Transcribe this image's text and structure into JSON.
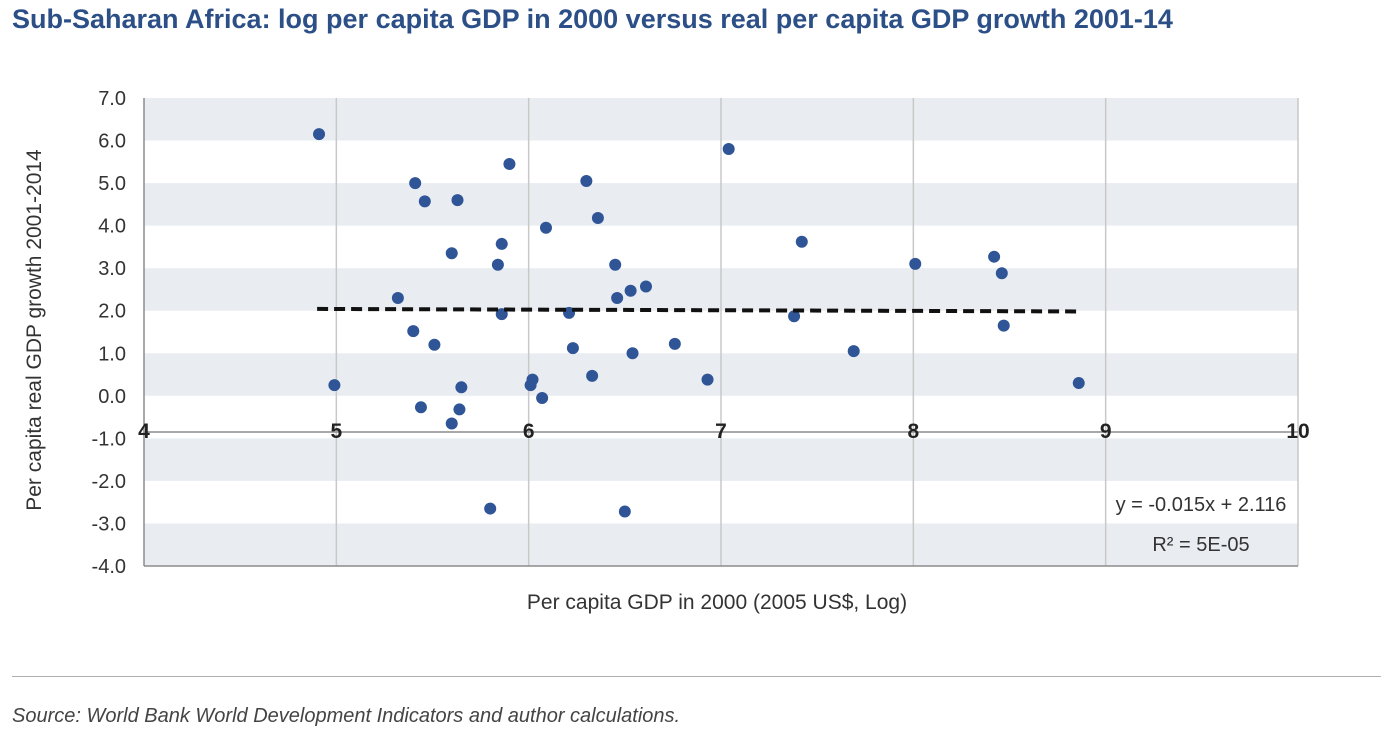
{
  "title": "Sub-Saharan Africa: log per capita GDP in 2000 versus real per capita GDP growth 2001-14",
  "source": "Source: World Bank World Development Indicators and author calculations.",
  "colors": {
    "title": "#2b4f86",
    "marker": "#2f5597",
    "band": "#e9edf1",
    "trendline": "#111111"
  },
  "chart_data": {
    "type": "scatter",
    "title": "Sub-Saharan Africa: log per capita GDP in 2000 versus real per capita GDP growth 2001-14",
    "xlabel": "Per capita GDP in 2000 (2005 US$, Log)",
    "ylabel": "Per capita real GDP growth 2001-2014",
    "xlim": [
      4,
      10
    ],
    "ylim": [
      -4,
      7
    ],
    "xticks": [
      4,
      5,
      6,
      7,
      8,
      9,
      10
    ],
    "xtick_labels": [
      "4",
      "5",
      "6",
      "7",
      "8",
      "9",
      "10"
    ],
    "yticks": [
      7,
      6,
      5,
      4,
      3,
      2,
      1,
      0,
      -1,
      -2,
      -3,
      -4
    ],
    "ytick_labels": [
      "7.0",
      "6.0",
      "5.0",
      "4.0",
      "3.0",
      "2.0",
      "1.0",
      "0.0",
      "-1.0",
      "-2.0",
      "-3.0",
      "-4.0"
    ],
    "grid": "vertical lines and alternating horizontal bands",
    "x_axis_crosses_y_at": -0.85,
    "points": [
      {
        "x": 4.91,
        "y": 6.15
      },
      {
        "x": 4.99,
        "y": 0.25
      },
      {
        "x": 5.32,
        "y": 2.3
      },
      {
        "x": 5.4,
        "y": 1.52
      },
      {
        "x": 5.41,
        "y": 5.0
      },
      {
        "x": 5.44,
        "y": -0.27
      },
      {
        "x": 5.46,
        "y": 4.57
      },
      {
        "x": 5.51,
        "y": 1.2
      },
      {
        "x": 5.6,
        "y": 3.35
      },
      {
        "x": 5.6,
        "y": -0.65
      },
      {
        "x": 5.63,
        "y": 4.6
      },
      {
        "x": 5.64,
        "y": -0.32
      },
      {
        "x": 5.65,
        "y": 0.2
      },
      {
        "x": 5.8,
        "y": -2.65
      },
      {
        "x": 5.84,
        "y": 3.08
      },
      {
        "x": 5.86,
        "y": 3.57
      },
      {
        "x": 5.86,
        "y": 1.92
      },
      {
        "x": 5.9,
        "y": 5.45
      },
      {
        "x": 6.01,
        "y": 0.25
      },
      {
        "x": 6.02,
        "y": 0.38
      },
      {
        "x": 6.07,
        "y": -0.05
      },
      {
        "x": 6.09,
        "y": 3.95
      },
      {
        "x": 6.21,
        "y": 1.95
      },
      {
        "x": 6.23,
        "y": 1.12
      },
      {
        "x": 6.3,
        "y": 5.05
      },
      {
        "x": 6.33,
        "y": 0.47
      },
      {
        "x": 6.36,
        "y": 4.18
      },
      {
        "x": 6.45,
        "y": 3.08
      },
      {
        "x": 6.46,
        "y": 2.3
      },
      {
        "x": 6.5,
        "y": -2.72
      },
      {
        "x": 6.53,
        "y": 2.47
      },
      {
        "x": 6.54,
        "y": 1.0
      },
      {
        "x": 6.61,
        "y": 2.57
      },
      {
        "x": 6.76,
        "y": 1.22
      },
      {
        "x": 6.93,
        "y": 0.38
      },
      {
        "x": 7.04,
        "y": 5.8
      },
      {
        "x": 7.38,
        "y": 1.87
      },
      {
        "x": 7.42,
        "y": 3.62
      },
      {
        "x": 7.69,
        "y": 1.05
      },
      {
        "x": 8.01,
        "y": 3.1
      },
      {
        "x": 8.42,
        "y": 3.27
      },
      {
        "x": 8.46,
        "y": 2.88
      },
      {
        "x": 8.47,
        "y": 1.65
      },
      {
        "x": 8.86,
        "y": 0.3
      }
    ],
    "trendline": {
      "style": "dashed",
      "x_range": [
        4.9,
        8.87
      ],
      "slope": -0.015,
      "intercept": 2.116,
      "equation": "y = -0.015x + 2.116",
      "r_squared": "R² = 5E-05"
    }
  }
}
